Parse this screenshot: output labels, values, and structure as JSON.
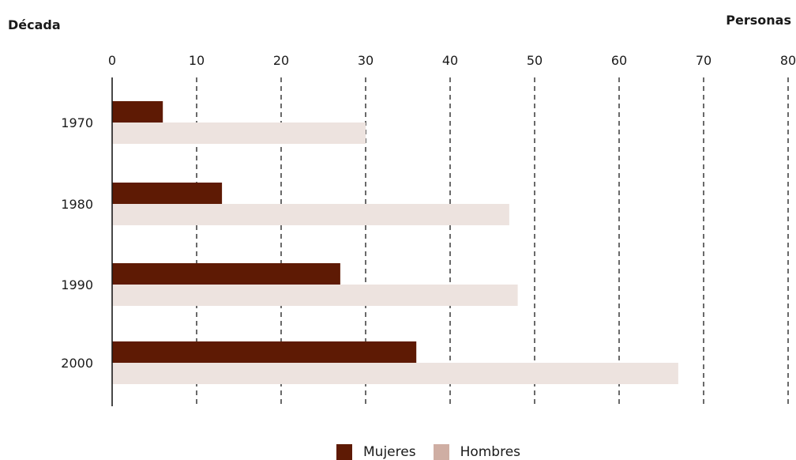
{
  "chart_data": {
    "type": "bar",
    "orientation": "horizontal",
    "xlabel": "Personas",
    "ylabel": "Década",
    "xlim": [
      0,
      80
    ],
    "xticks": [
      0,
      10,
      20,
      30,
      40,
      50,
      60,
      70,
      80
    ],
    "categories": [
      "1970",
      "1980",
      "1990",
      "2000"
    ],
    "series": [
      {
        "name": "Mujeres",
        "color": "#5e1a04",
        "values": [
          6,
          13,
          27,
          36
        ]
      },
      {
        "name": "Hombres",
        "color": "#ede3df",
        "values": [
          30,
          47,
          48,
          67
        ]
      }
    ],
    "grid": "vertical dashed",
    "legend_position": "bottom-center",
    "legend_swatch_colors": [
      "#5e1a04",
      "#cfaea3"
    ]
  }
}
